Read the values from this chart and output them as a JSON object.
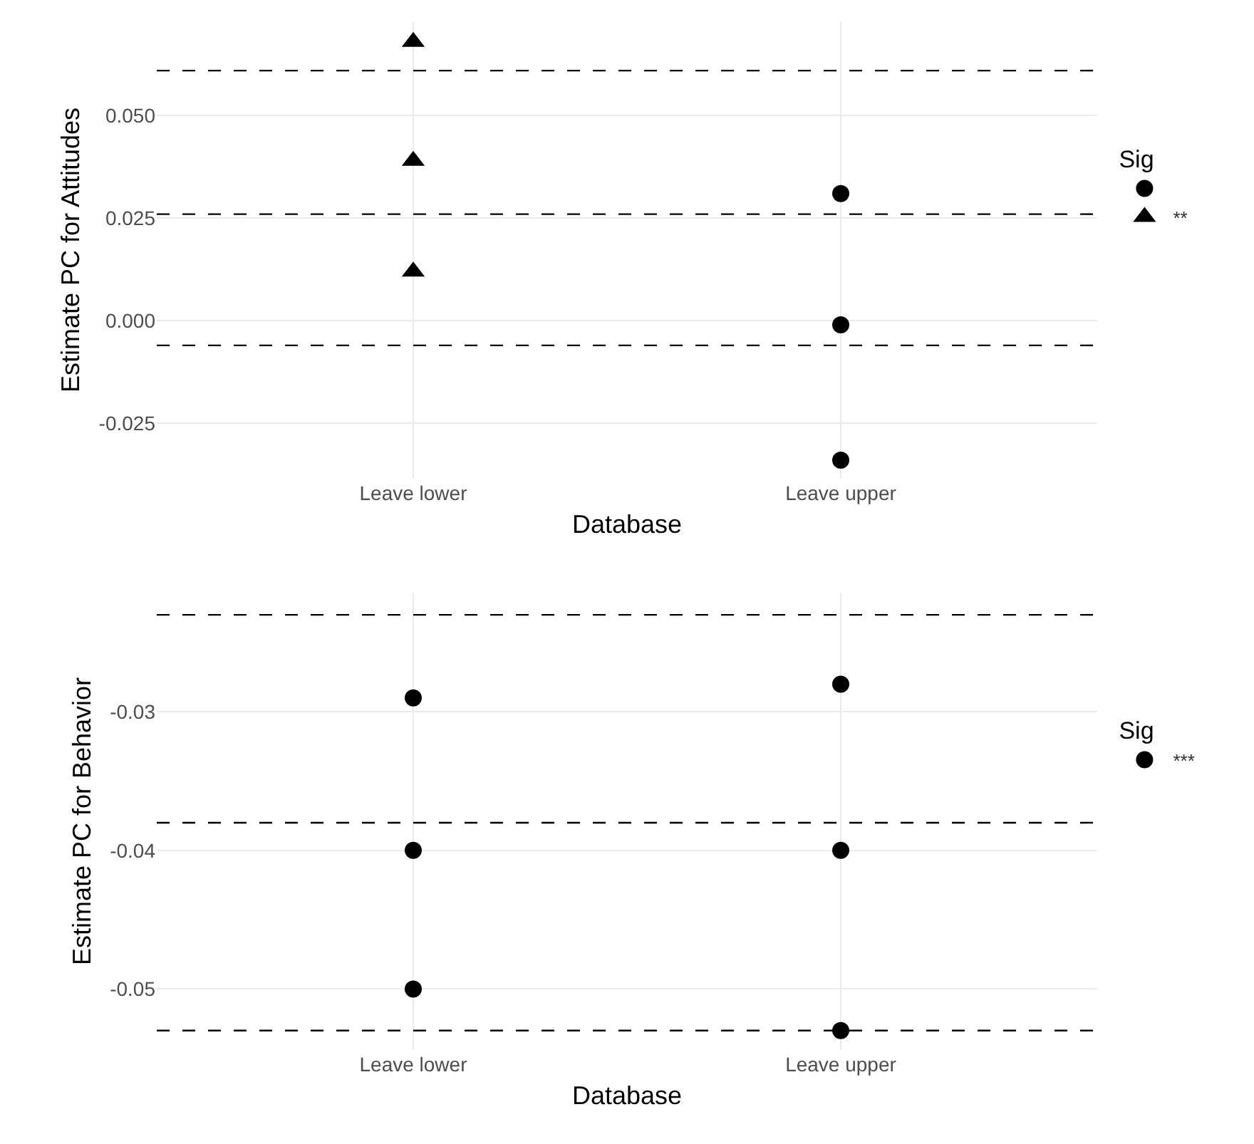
{
  "chart_data": [
    {
      "type": "scatter",
      "xlabel": "Database",
      "ylabel": "Estimate PC for Attitudes",
      "legend_title": "Sig",
      "categories": [
        "Leave lower",
        "Leave upper"
      ],
      "ylim": [
        -0.0385,
        0.073
      ],
      "yticks": [
        {
          "value": 0.05,
          "label": "0.050"
        },
        {
          "value": 0.025,
          "label": "0.025"
        },
        {
          "value": 0,
          "label": "0.000"
        },
        {
          "value": -0.025,
          "label": "-0.025"
        }
      ],
      "grid": true,
      "legend": "right",
      "series": [
        {
          "color": "#000000",
          "marker": "circle",
          "x": [
            "Leave upper",
            "Leave upper",
            "Leave upper"
          ],
          "values": [
            0.031,
            -0.001,
            -0.034
          ]
        },
        {
          "name": "**",
          "color": "#000000",
          "marker": "triangle",
          "x": [
            "Leave lower",
            "Leave lower",
            "Leave lower"
          ],
          "values": [
            0.068,
            0.039,
            0.012
          ]
        }
      ],
      "ref_lines": [
        {
          "axis": "y",
          "value": 0.061,
          "color": "#000000",
          "line_style": "dashed"
        },
        {
          "axis": "y",
          "value": 0.026,
          "color": "#000000",
          "line_style": "dashed"
        },
        {
          "axis": "y",
          "value": -0.006,
          "color": "#000000",
          "line_style": "dashed"
        }
      ]
    },
    {
      "type": "scatter",
      "xlabel": "Database",
      "ylabel": "Estimate PC for Behavior",
      "legend_title": "Sig",
      "categories": [
        "Leave lower",
        "Leave upper"
      ],
      "ylim": [
        -0.0544,
        -0.0214
      ],
      "yticks": [
        -0.03,
        -0.04,
        -0.05
      ],
      "grid": true,
      "legend": "right",
      "series": [
        {
          "name": "***",
          "color": "#000000",
          "marker": "circle",
          "x": [
            "Leave lower",
            "Leave lower",
            "Leave lower",
            "Leave upper",
            "Leave upper",
            "Leave upper"
          ],
          "values": [
            -0.029,
            -0.04,
            -0.05,
            -0.028,
            -0.04,
            -0.053
          ]
        }
      ],
      "ref_lines": [
        {
          "axis": "y",
          "value": -0.023,
          "color": "#000000",
          "line_style": "dashed"
        },
        {
          "axis": "y",
          "value": -0.038,
          "color": "#000000",
          "line_style": "dashed"
        },
        {
          "axis": "y",
          "value": -0.053,
          "color": "#000000",
          "line_style": "dashed"
        }
      ]
    }
  ]
}
